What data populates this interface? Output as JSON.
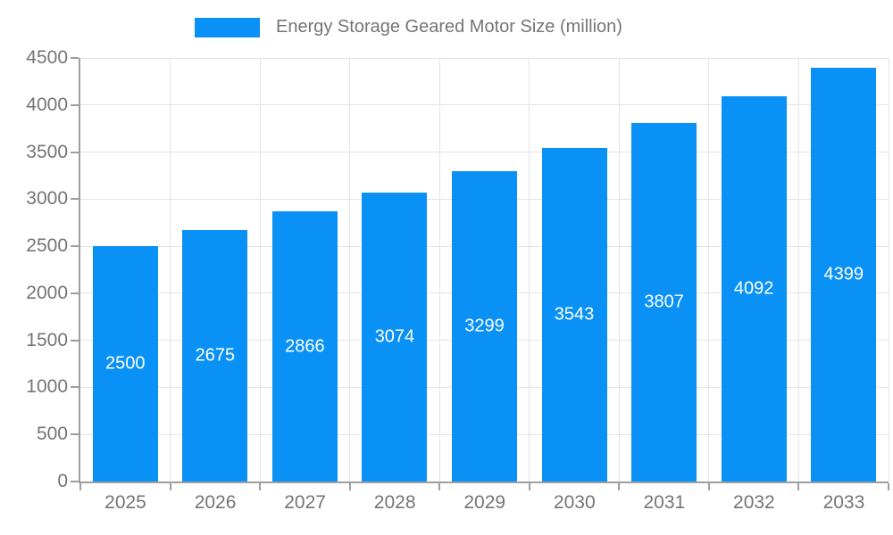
{
  "chart_data": {
    "type": "bar",
    "title": "Energy Storage Geared Motor Size (million)",
    "categories": [
      "2025",
      "2026",
      "2027",
      "2028",
      "2029",
      "2030",
      "2031",
      "2032",
      "2033"
    ],
    "series": [
      {
        "name": "Energy Storage Geared Motor Size (million)",
        "values": [
          2500,
          2675,
          2866,
          3074,
          3299,
          3543,
          3807,
          4092,
          4399
        ]
      }
    ],
    "bar_value_labels": [
      "2500",
      "2675",
      "2866",
      "3074",
      "3299",
      "3543",
      "3807",
      "4092",
      "4399"
    ],
    "xlabel": "",
    "ylabel": "",
    "ylim": [
      0,
      4500
    ],
    "ytick_step": 500,
    "yticks": [
      "0",
      "500",
      "1000",
      "1500",
      "2000",
      "2500",
      "3000",
      "3500",
      "4000",
      "4500"
    ],
    "grid": true,
    "legend_position": "top-center",
    "value_label_position": "center-inside-bar"
  },
  "legend": {
    "label": "Energy Storage Geared Motor Size (million)"
  },
  "colors": {
    "bar": "#0991f5",
    "bar_value_text": "#ffffff",
    "grid_line": "#e4e4e4",
    "axis_line": "#9e9e9e",
    "tick_text": "#757575",
    "legend_text": "#757575",
    "background": "#ffffff"
  }
}
